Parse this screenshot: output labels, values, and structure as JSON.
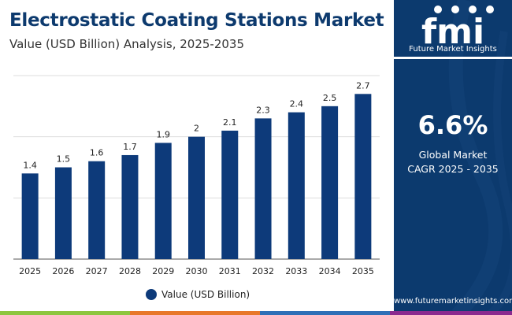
{
  "header": {
    "title": "Electrostatic Coating Stations Market",
    "subtitle": "Value (USD Billion) Analysis, 2025-2035"
  },
  "chart_data": {
    "type": "bar",
    "categories": [
      "2025",
      "2026",
      "2027",
      "2028",
      "2029",
      "2030",
      "2031",
      "2032",
      "2033",
      "2034",
      "2035"
    ],
    "series": [
      {
        "name": "Value (USD Billion)",
        "values": [
          1.4,
          1.5,
          1.6,
          1.7,
          1.9,
          2,
          2.1,
          2.3,
          2.4,
          2.5,
          2.7
        ]
      }
    ],
    "value_labels": [
      "1.4",
      "1.5",
      "1.6",
      "1.7",
      "1.9",
      "2",
      "2.1",
      "2.3",
      "2.4",
      "2.5",
      "2.7"
    ],
    "ylim": [
      0,
      3
    ],
    "grid": true,
    "legend_position": "bottom",
    "bar_color": "#0d3a7a"
  },
  "legend": {
    "label": "Value (USD Billion)"
  },
  "side_panel": {
    "logo_text": "fmi",
    "logo_subtitle": "Future Market Insights",
    "cagr_value": "6.6%",
    "cagr_label_line1": "Global Market",
    "cagr_label_line2": "CAGR 2025 - 2035",
    "website": "www.futuremarketinsights.com",
    "background_color": "#0c3a6e"
  },
  "footer": {
    "stripe_colors": [
      "#8dc63f",
      "#e8782a",
      "#2e6fb7",
      "#8b2a8f"
    ]
  }
}
